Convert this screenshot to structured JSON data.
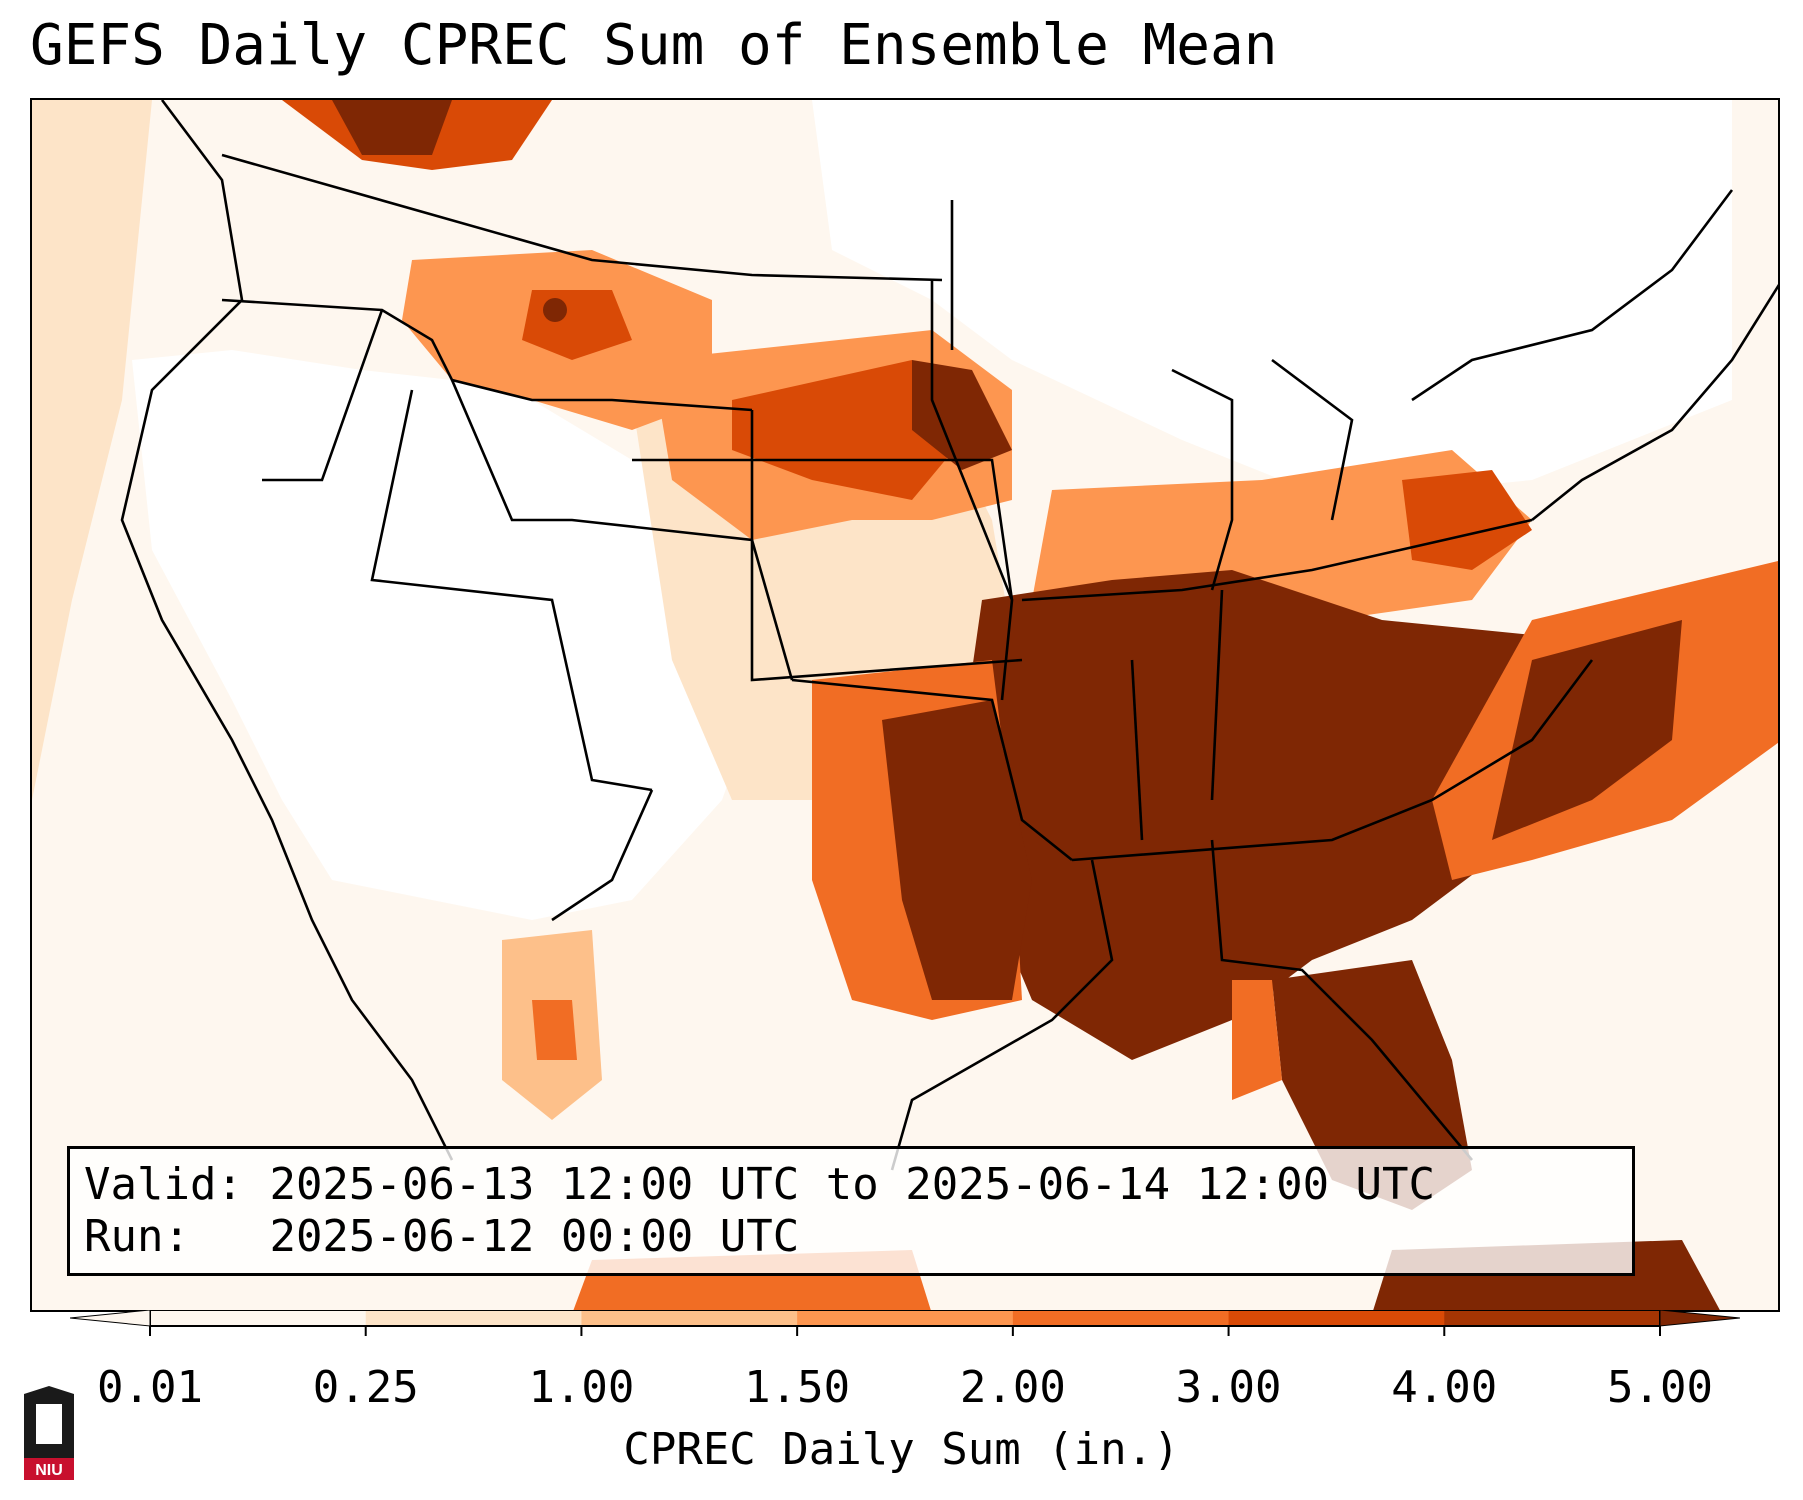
{
  "title": "GEFS Daily CPREC Sum of Ensemble Mean",
  "info": {
    "valid_label": "Valid:",
    "valid_value": "2025-06-13 12:00 UTC to 2025-06-14 12:00 UTC",
    "run_label": "Run:",
    "run_value": "2025-06-12 00:00 UTC"
  },
  "colorbar": {
    "label": "CPREC Daily Sum (in.)",
    "ticks": [
      "0.01",
      "0.25",
      "1.00",
      "1.50",
      "2.00",
      "3.00",
      "4.00",
      "5.00"
    ],
    "colors": [
      "#fef7ef",
      "#fde4c8",
      "#fdc08a",
      "#fd9650",
      "#f16d24",
      "#d94a06",
      "#a53503",
      "#7f2704"
    ],
    "extend": "both"
  },
  "map": {
    "region": "CONUS",
    "palette": [
      "#ffffff",
      "#fef7ef",
      "#fde4c8",
      "#fdc08a",
      "#fd9650",
      "#f16d24",
      "#d94a06",
      "#7f2704"
    ]
  },
  "logo": {
    "name": "NIU",
    "text": "NIU",
    "colors": {
      "dark": "#1a1a1a",
      "red": "#c8102e"
    }
  }
}
